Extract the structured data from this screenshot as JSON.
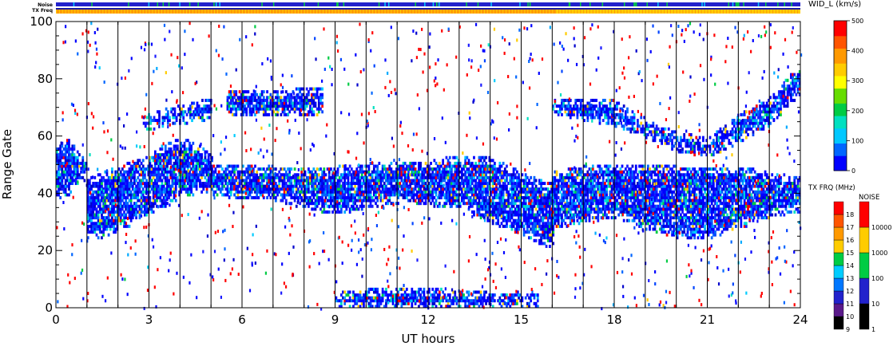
{
  "chart_data": {
    "type": "heatmap",
    "xlabel": "UT hours",
    "ylabel": "Range Gate",
    "xlim": [
      0,
      24
    ],
    "ylim": [
      0,
      100
    ],
    "x_ticks": [
      0,
      3,
      6,
      9,
      12,
      15,
      18,
      21,
      24
    ],
    "y_ticks": [
      0,
      20,
      40,
      60,
      80,
      100
    ],
    "hour_markers": [
      1,
      2,
      3,
      4,
      5,
      6,
      7,
      8,
      9,
      10,
      11,
      12,
      13,
      14,
      15,
      16,
      17,
      18,
      19,
      20,
      21,
      22,
      23
    ],
    "status_bars": {
      "noise_label": "Noise",
      "freq_label": "TX Freq",
      "noise_color": "#2222cc",
      "freq_color_before": "#ff9900",
      "freq_color_after": "#ffcc00",
      "freq_change_hour": 16,
      "freq_top_line_color": "#1a1aa0"
    },
    "main_colorbar": {
      "title": "WID_L (km/s)",
      "ticks": [
        0,
        100,
        200,
        300,
        400,
        500
      ],
      "colors": [
        "#0000ff",
        "#0066ff",
        "#00c8ff",
        "#00e0c0",
        "#00cc44",
        "#66dd00",
        "#ffff00",
        "#ffcc00",
        "#ff9900",
        "#ff5500",
        "#ff0000"
      ]
    },
    "freq_colorbar": {
      "title": "TX FRQ (MHz)",
      "labels": [
        "9",
        "10",
        "11",
        "12",
        "13",
        "14",
        "15",
        "16",
        "17",
        "18"
      ],
      "colors": [
        "#000000",
        "#5a1a8a",
        "#2222cc",
        "#0077ff",
        "#00ccff",
        "#00cc44",
        "#ffcc00",
        "#ff9900",
        "#ff5500",
        "#ff0000"
      ]
    },
    "noise_colorbar": {
      "title": "NOISE",
      "labels": [
        "1",
        "10",
        "100",
        "1000",
        "10000"
      ],
      "colors": [
        "#000000",
        "#2222cc",
        "#00cc44",
        "#ffcc00",
        "#ff0000"
      ]
    },
    "series": [
      {
        "values": [
          {
            "t": [
              0.0,
              0.4,
              0.8,
              1.0
            ],
            "lo": [
              38,
              40,
              44,
              46
            ],
            "hi": [
              55,
              58,
              52,
              50
            ]
          },
          {
            "t": [
              1.0,
              1.5,
              2.0,
              2.5,
              3.0,
              3.5,
              4.0,
              4.5,
              5.0
            ],
            "lo": [
              24,
              25,
              27,
              30,
              33,
              36,
              39,
              40,
              40
            ],
            "hi": [
              44,
              46,
              48,
              50,
              52,
              56,
              58,
              56,
              52
            ]
          },
          {
            "t": [
              5.0,
              6.0,
              7.0,
              8.0,
              9.0,
              10.0,
              11.0,
              12.0,
              13.0,
              14.0,
              15.0,
              16.0
            ],
            "lo": [
              40,
              38,
              38,
              35,
              33,
              35,
              37,
              36,
              35,
              30,
              26,
              20
            ],
            "hi": [
              49,
              49,
              48,
              48,
              48,
              49,
              50,
              50,
              52,
              51,
              46,
              42
            ]
          },
          {
            "t": [
              16.0,
              17.0,
              18.0,
              19.0,
              20.0,
              21.0,
              22.0,
              23.0,
              24.0
            ],
            "lo": [
              28,
              30,
              32,
              28,
              25,
              24,
              28,
              32,
              34
            ],
            "hi": [
              46,
              48,
              49,
              49,
              48,
              48,
              48,
              46,
              44
            ]
          },
          {
            "t": [
              2.8,
              3.5,
              4.3,
              5.0
            ],
            "lo": [
              62,
              64,
              65,
              66
            ],
            "hi": [
              66,
              68,
              70,
              72
            ]
          },
          {
            "t": [
              5.5,
              6.5,
              7.5,
              8.6
            ],
            "lo": [
              67,
              67,
              67,
              68
            ],
            "hi": [
              75,
              75,
              75,
              76
            ]
          },
          {
            "t": [
              16.0,
              17.0,
              18.0,
              19.0,
              20.0,
              21.0,
              22.0,
              23.0,
              24.0
            ],
            "lo": [
              68,
              66,
              64,
              60,
              55,
              53,
              58,
              64,
              75
            ],
            "hi": [
              72,
              72,
              71,
              64,
              60,
              58,
              66,
              72,
              84
            ]
          },
          {
            "t": [
              9.0,
              11.0,
              12.5,
              14.0,
              15.5
            ],
            "lo": [
              0,
              0,
              0,
              0,
              0
            ],
            "hi": [
              4,
              6,
              5,
              4,
              3
            ]
          }
        ]
      }
    ]
  }
}
